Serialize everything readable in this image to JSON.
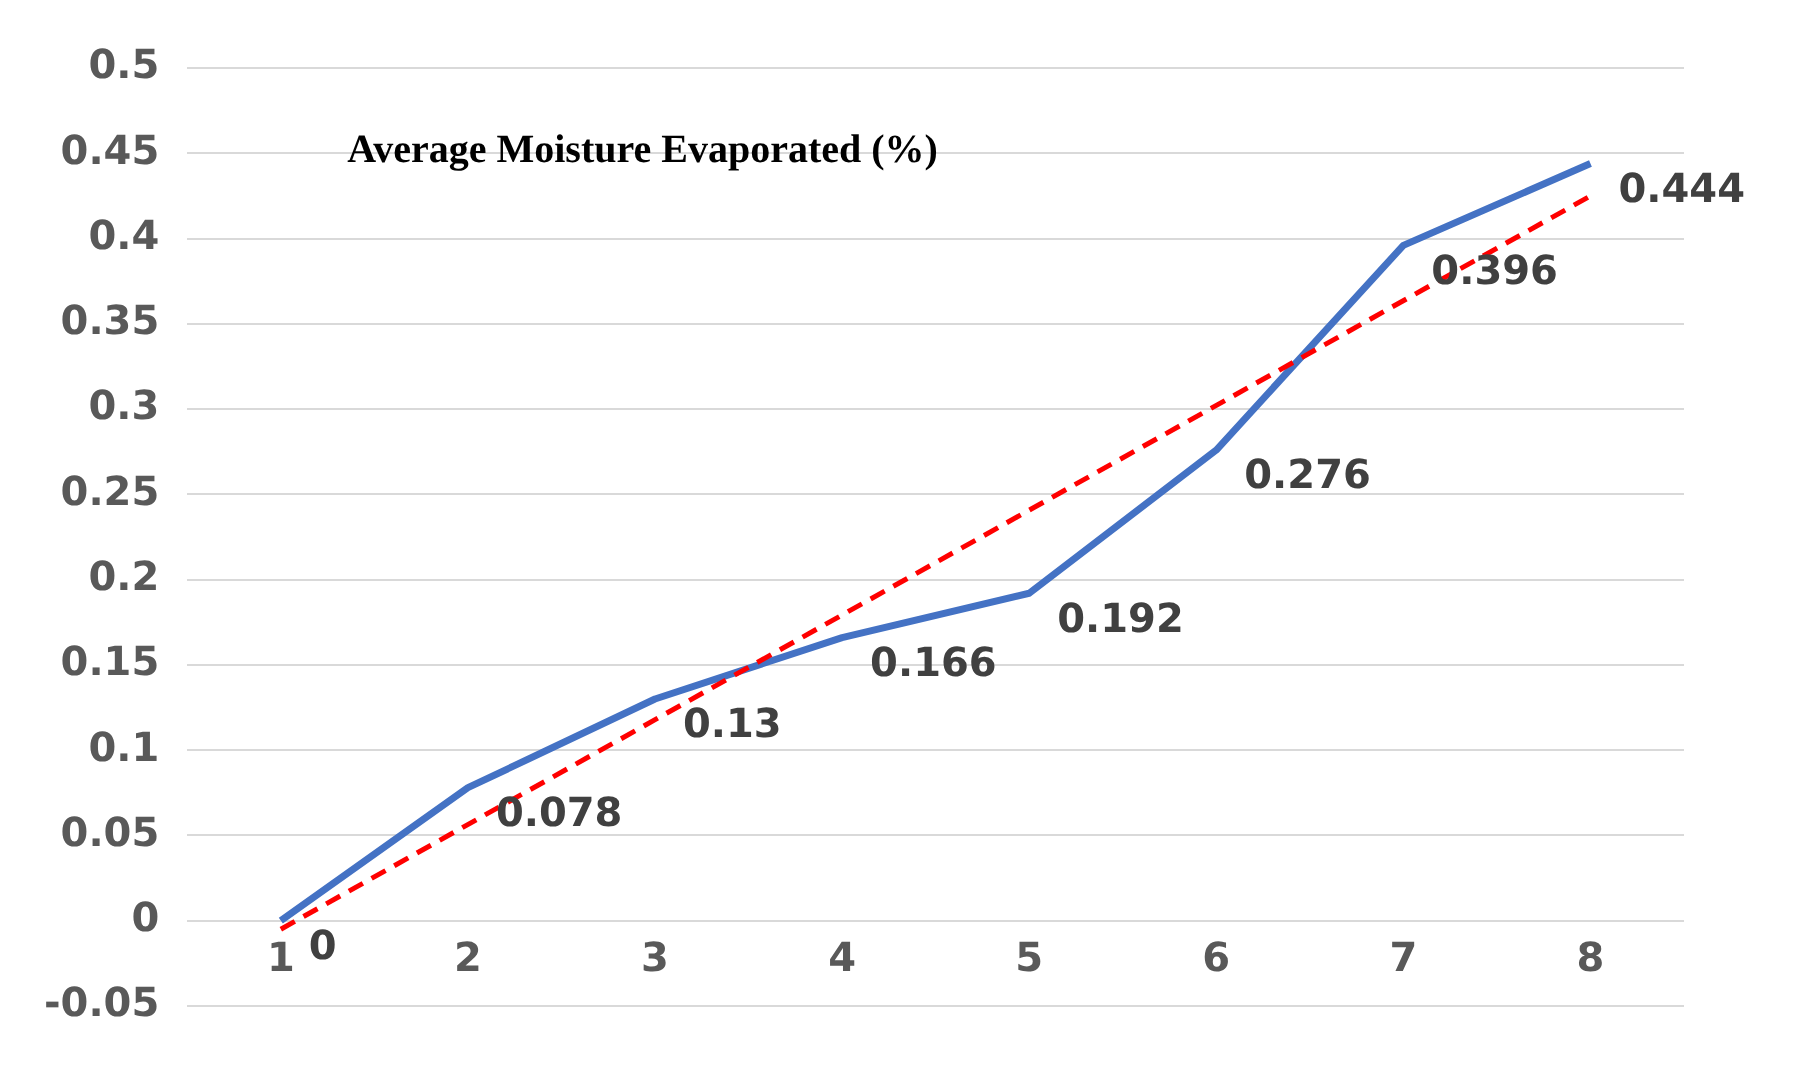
{
  "chart_data": {
    "type": "line",
    "title": "Average Moisture Evaporated (%)",
    "categories": [
      "1",
      "2",
      "3",
      "4",
      "5",
      "6",
      "7",
      "8"
    ],
    "series": [
      {
        "color": "#4472c4",
        "values": [
          0,
          0.078,
          0.13,
          0.166,
          0.192,
          0.276,
          0.396,
          0.444
        ],
        "value_labels": [
          "0",
          "0.078",
          "0.13",
          "0.166",
          "0.192",
          "0.276",
          "0.396",
          "0.444"
        ]
      },
      {
        "type": "line",
        "color": "#ff0000",
        "line_style": "dashed",
        "x": [
          "1",
          "8"
        ],
        "values": [
          -0.005,
          0.425
        ]
      }
    ],
    "ylim": [
      -0.05,
      0.5
    ],
    "yticks": [
      -0.05,
      0,
      0.05,
      0.1,
      0.15,
      0.2,
      0.25,
      0.3,
      0.35,
      0.4,
      0.45,
      0.5
    ],
    "grid": "y",
    "legend": false,
    "marker": "none"
  }
}
